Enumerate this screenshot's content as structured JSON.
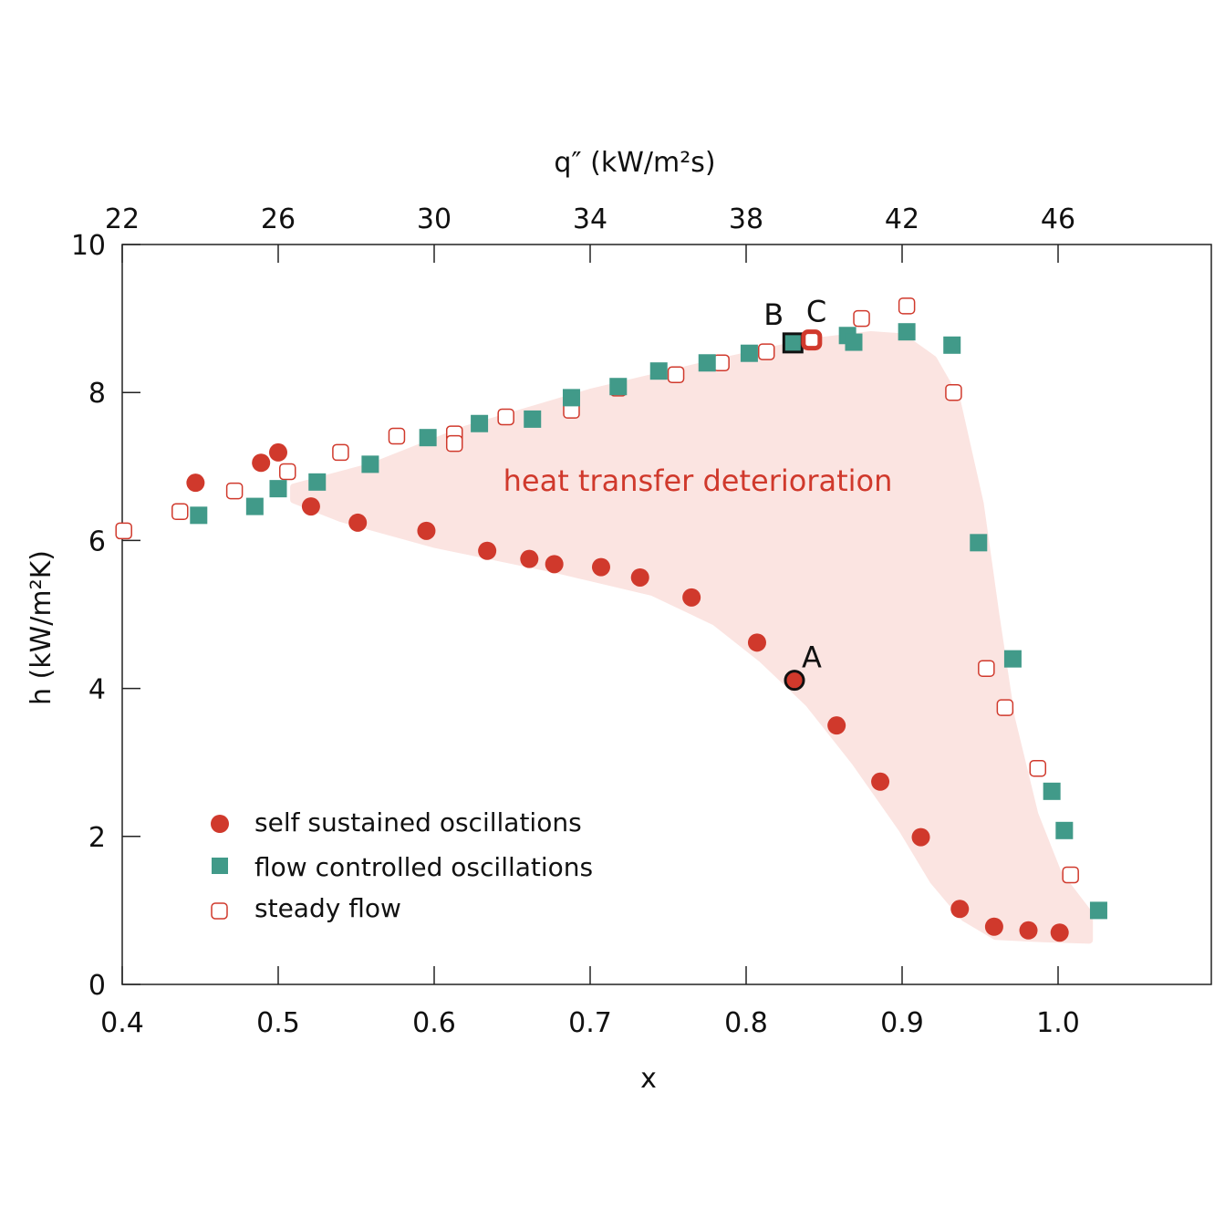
{
  "chart_data": {
    "type": "scatter",
    "xlabel": "x",
    "ylabel": "h (kW/m²K)",
    "x2label": "q″ (kW/m²s)",
    "xlim": [
      0.4,
      1.1
    ],
    "ylim": [
      0,
      10
    ],
    "xticks": [
      "0.4",
      "0.5",
      "0.6",
      "0.7",
      "0.8",
      "0.9",
      "1.0"
    ],
    "xtick_values": [
      0.4,
      0.5,
      0.6,
      0.7,
      0.8,
      0.9,
      1.0
    ],
    "yticks": [
      "0",
      "2",
      "4",
      "6",
      "8",
      "10"
    ],
    "ytick_values": [
      0,
      2,
      4,
      6,
      8,
      10
    ],
    "x2ticks": [
      "22",
      "26",
      "30",
      "34",
      "38",
      "42",
      "46"
    ],
    "grid": false,
    "legend_position": "bottom-left",
    "region_label": "heat transfer deterioration",
    "colors": {
      "red": "#d0392c",
      "teal": "#419a89",
      "region": "#fbe4e1"
    },
    "region": [
      [
        0.51,
        6.72
      ],
      [
        0.56,
        7.0
      ],
      [
        0.62,
        7.5
      ],
      [
        0.7,
        8.0
      ],
      [
        0.78,
        8.4
      ],
      [
        0.84,
        8.68
      ],
      [
        0.88,
        8.78
      ],
      [
        0.9,
        8.75
      ],
      [
        0.92,
        8.45
      ],
      [
        0.935,
        7.9
      ],
      [
        0.95,
        6.5
      ],
      [
        0.96,
        5.0
      ],
      [
        0.97,
        3.6
      ],
      [
        0.985,
        2.3
      ],
      [
        1.0,
        1.5
      ],
      [
        1.02,
        0.95
      ],
      [
        1.02,
        0.6
      ],
      [
        0.99,
        0.62
      ],
      [
        0.96,
        0.65
      ],
      [
        0.94,
        0.9
      ],
      [
        0.92,
        1.4
      ],
      [
        0.9,
        2.1
      ],
      [
        0.87,
        3.0
      ],
      [
        0.84,
        3.8
      ],
      [
        0.81,
        4.4
      ],
      [
        0.78,
        4.9
      ],
      [
        0.74,
        5.3
      ],
      [
        0.68,
        5.6
      ],
      [
        0.6,
        5.95
      ],
      [
        0.54,
        6.3
      ],
      [
        0.51,
        6.55
      ]
    ],
    "series": [
      {
        "name": "self sustained oscillations",
        "marker": "filled-circle",
        "points": [
          [
            0.447,
            6.78
          ],
          [
            0.489,
            7.05
          ],
          [
            0.5,
            7.19
          ],
          [
            0.521,
            6.46
          ],
          [
            0.551,
            6.24
          ],
          [
            0.595,
            6.13
          ],
          [
            0.634,
            5.86
          ],
          [
            0.661,
            5.75
          ],
          [
            0.677,
            5.68
          ],
          [
            0.707,
            5.64
          ],
          [
            0.732,
            5.5
          ],
          [
            0.765,
            5.23
          ],
          [
            0.807,
            4.62
          ],
          [
            0.831,
            4.11
          ],
          [
            0.858,
            3.5
          ],
          [
            0.886,
            2.74
          ],
          [
            0.912,
            1.99
          ],
          [
            0.937,
            1.02
          ],
          [
            0.959,
            0.78
          ],
          [
            0.981,
            0.73
          ],
          [
            1.001,
            0.7
          ]
        ]
      },
      {
        "name": "flow controlled oscillations",
        "marker": "filled-square",
        "points": [
          [
            0.449,
            6.34
          ],
          [
            0.485,
            6.46
          ],
          [
            0.5,
            6.7
          ],
          [
            0.525,
            6.79
          ],
          [
            0.559,
            7.03
          ],
          [
            0.596,
            7.39
          ],
          [
            0.629,
            7.58
          ],
          [
            0.663,
            7.64
          ],
          [
            0.688,
            7.93
          ],
          [
            0.718,
            8.08
          ],
          [
            0.744,
            8.29
          ],
          [
            0.775,
            8.4
          ],
          [
            0.802,
            8.53
          ],
          [
            0.83,
            8.67
          ],
          [
            0.865,
            8.77
          ],
          [
            0.869,
            8.68
          ],
          [
            0.903,
            8.82
          ],
          [
            0.932,
            8.64
          ],
          [
            0.949,
            5.97
          ],
          [
            0.971,
            4.4
          ],
          [
            0.996,
            2.61
          ],
          [
            1.004,
            2.08
          ],
          [
            1.026,
            1.0
          ]
        ]
      },
      {
        "name": "steady flow",
        "marker": "open-square",
        "points": [
          [
            0.401,
            6.13
          ],
          [
            0.437,
            6.39
          ],
          [
            0.472,
            6.67
          ],
          [
            0.506,
            6.93
          ],
          [
            0.54,
            7.19
          ],
          [
            0.576,
            7.41
          ],
          [
            0.613,
            7.44
          ],
          [
            0.613,
            7.31
          ],
          [
            0.646,
            7.67
          ],
          [
            0.688,
            7.88
          ],
          [
            0.688,
            7.76
          ],
          [
            0.718,
            8.06
          ],
          [
            0.755,
            8.24
          ],
          [
            0.784,
            8.4
          ],
          [
            0.813,
            8.55
          ],
          [
            0.842,
            8.71
          ],
          [
            0.874,
            9.0
          ],
          [
            0.903,
            9.17
          ],
          [
            0.933,
            8.0
          ],
          [
            0.954,
            4.27
          ],
          [
            0.966,
            3.74
          ],
          [
            0.987,
            2.92
          ],
          [
            1.008,
            1.48
          ]
        ]
      }
    ],
    "annotations": [
      {
        "label": "A",
        "x": 0.831,
        "y": 4.11,
        "series": "self sustained oscillations"
      },
      {
        "label": "B",
        "x": 0.83,
        "y": 8.67,
        "series": "flow controlled oscillations"
      },
      {
        "label": "C",
        "x": 0.842,
        "y": 8.71,
        "series": "steady flow"
      }
    ]
  }
}
